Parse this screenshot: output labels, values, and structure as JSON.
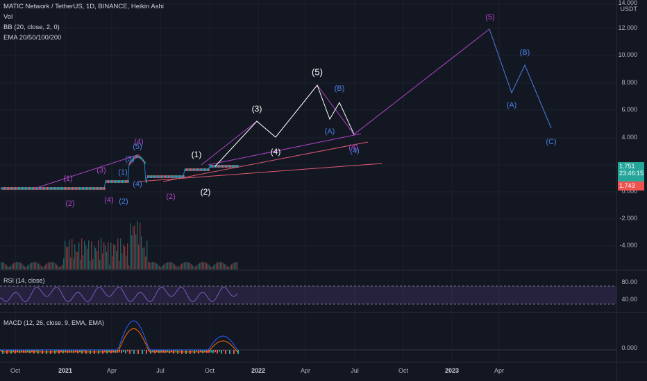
{
  "header": {
    "symbol_line": "MATIC Network / TetherUS, 1D, BINANCE, Heikin Ashi",
    "vol": "Vol",
    "bb": "BB (20, close, 2, 0)",
    "ema": "EMA 20/50/100/200"
  },
  "axis": {
    "currency": "USDT",
    "price_labels": [
      "14.000",
      "12.000",
      "10.000",
      "8.000",
      "6.000",
      "4.000",
      "0.000",
      "-2.000",
      "-4.000"
    ],
    "x_labels": [
      {
        "t": "Oct",
        "bold": false
      },
      {
        "t": "2021",
        "bold": true
      },
      {
        "t": "Apr",
        "bold": false
      },
      {
        "t": "Jul",
        "bold": false
      },
      {
        "t": "Oct",
        "bold": false
      },
      {
        "t": "2022",
        "bold": true
      },
      {
        "t": "Apr",
        "bold": false
      },
      {
        "t": "Jul",
        "bold": false
      },
      {
        "t": "Oct",
        "bold": false
      },
      {
        "t": "2023",
        "bold": true
      },
      {
        "t": "Apr",
        "bold": false
      }
    ]
  },
  "price_tags": {
    "last": "1.751",
    "countdown": "23:46:15",
    "ha_close": "1.743",
    "last_color": "#26a69a",
    "ha_color": "#ef5350"
  },
  "rsi": {
    "label": "RSI (14, close)",
    "levels": [
      "80.00",
      "40.00"
    ]
  },
  "macd": {
    "label": "MACD (12, 26, close, 9, EMA, EMA)",
    "level": "0.000"
  },
  "colors": {
    "white_wave": "#ffffff",
    "purple_wave": "#b044c8",
    "blue_wave": "#4a80e8",
    "bg": "#131722"
  },
  "wave_labels": [
    {
      "t": "(5)",
      "c": "purple"
    },
    {
      "t": "(B)",
      "c": "blue"
    },
    {
      "t": "(A)",
      "c": "blue"
    },
    {
      "t": "(C)",
      "c": "blue"
    },
    {
      "t": "(5)",
      "c": "white"
    },
    {
      "t": "(B)",
      "c": "blue"
    },
    {
      "t": "(A)",
      "c": "blue"
    },
    {
      "t": "(3)",
      "c": "white"
    },
    {
      "t": "(4)",
      "c": "white"
    },
    {
      "t": "(4)",
      "c": "purple"
    },
    {
      "t": "(4)",
      "c": "blue"
    },
    {
      "t": "(1)",
      "c": "white"
    },
    {
      "t": "(2)",
      "c": "white"
    },
    {
      "t": "(1)",
      "c": "purple"
    },
    {
      "t": "(2)",
      "c": "purple"
    },
    {
      "t": "(3)",
      "c": "purple"
    },
    {
      "t": "(4)",
      "c": "purple"
    },
    {
      "t": "(2)",
      "c": "purple"
    },
    {
      "t": "(2)",
      "c": "blue"
    },
    {
      "t": "(1)",
      "c": "blue"
    },
    {
      "t": "(3)",
      "c": "blue"
    },
    {
      "t": "(5)",
      "c": "blue"
    },
    {
      "t": "(4)",
      "c": "blue"
    },
    {
      "t": "(4)",
      "c": "purple"
    }
  ]
}
